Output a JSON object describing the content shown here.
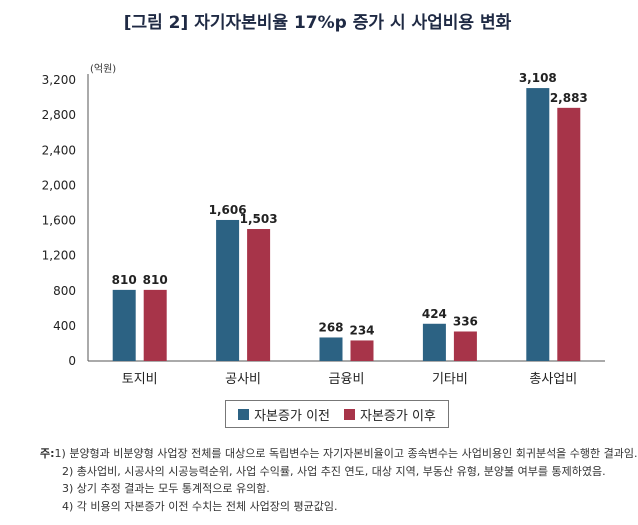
{
  "chart_data": {
    "type": "bar",
    "title": "[그림 2] 자기자본비율 17%p 증가 시 사업비용 변화",
    "unit_label": "(억원)",
    "categories": [
      "토지비",
      "공사비",
      "금융비",
      "기타비",
      "총사업비"
    ],
    "series": [
      {
        "name": "자본증가 이전",
        "values": [
          810,
          1606,
          268,
          424,
          3108
        ],
        "color": "#2c6283"
      },
      {
        "name": "자본증가 이후",
        "values": [
          810,
          1503,
          234,
          336,
          2883
        ],
        "color": "#a73449"
      }
    ],
    "value_labels": [
      [
        "810",
        "1,606",
        "268",
        "424",
        "3,108"
      ],
      [
        "810",
        "1,503",
        "234",
        "336",
        "2,883"
      ]
    ],
    "y_ticks": [
      "0",
      "400",
      "800",
      "1,200",
      "1,600",
      "2,000",
      "2,400",
      "2,800",
      "3,200"
    ],
    "ylim": [
      0,
      3200
    ],
    "grid": false,
    "legend_position": "bottom"
  },
  "notes": {
    "prefix": "주:",
    "lines": [
      "1) 분양형과 비분양형 사업장 전체를 대상으로 독립변수는 자기자본비율이고 종속변수는 사업비용인 회귀분석을 수행한 결과임.",
      "2) 총사업비, 시공사의 시공능력순위, 사업 수익률, 사업 추진 연도, 대상 지역, 부동산 유형, 분양불 여부를 통제하였음.",
      "3) 상기 추정 결과는 모두 통계적으로 유의함.",
      "4) 각 비용의 자본증가 이전 수치는 전체 사업장의 평균값임."
    ]
  }
}
